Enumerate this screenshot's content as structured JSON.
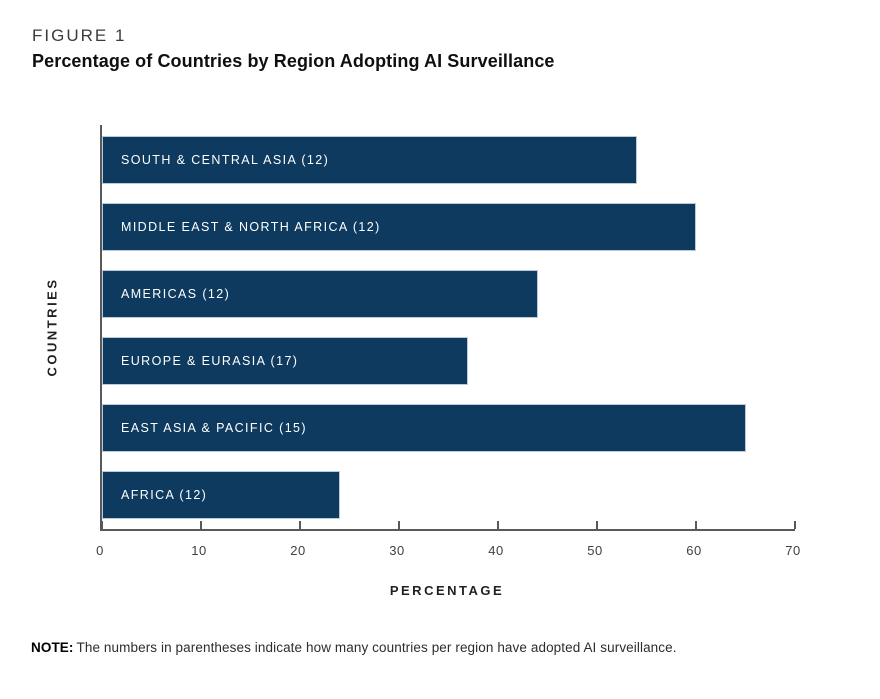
{
  "header": {
    "figure_label": "FIGURE 1",
    "title": "Percentage of Countries by Region Adopting AI Surveillance"
  },
  "chart_data": {
    "type": "bar",
    "orientation": "horizontal",
    "title": "Percentage of Countries by Region Adopting AI Surveillance",
    "categories": [
      "SOUTH & CENTRAL ASIA (12)",
      "MIDDLE EAST & NORTH AFRICA (12)",
      "AMERICAS (12)",
      "EUROPE & EURASIA (17)",
      "EAST ASIA & PACIFIC (15)",
      "AFRICA (12)"
    ],
    "values": [
      54,
      60,
      44,
      37,
      65,
      24
    ],
    "countries_adopting": [
      12,
      12,
      12,
      17,
      15,
      12
    ],
    "xlabel": "PERCENTAGE",
    "ylabel": "COUNTRIES",
    "xlim": [
      0,
      70
    ],
    "xticks": [
      0,
      10,
      20,
      30,
      40,
      50,
      60,
      70
    ],
    "grid": false,
    "legend": false,
    "bar_color": "#0d3a5e",
    "bar_border_color": "#b9cbda",
    "bar_label_color": "#ffffff",
    "axis_color": "#58595b"
  },
  "note": {
    "prefix": "NOTE:",
    "text": "The numbers in parentheses indicate how many countries per region have adopted AI surveillance."
  }
}
